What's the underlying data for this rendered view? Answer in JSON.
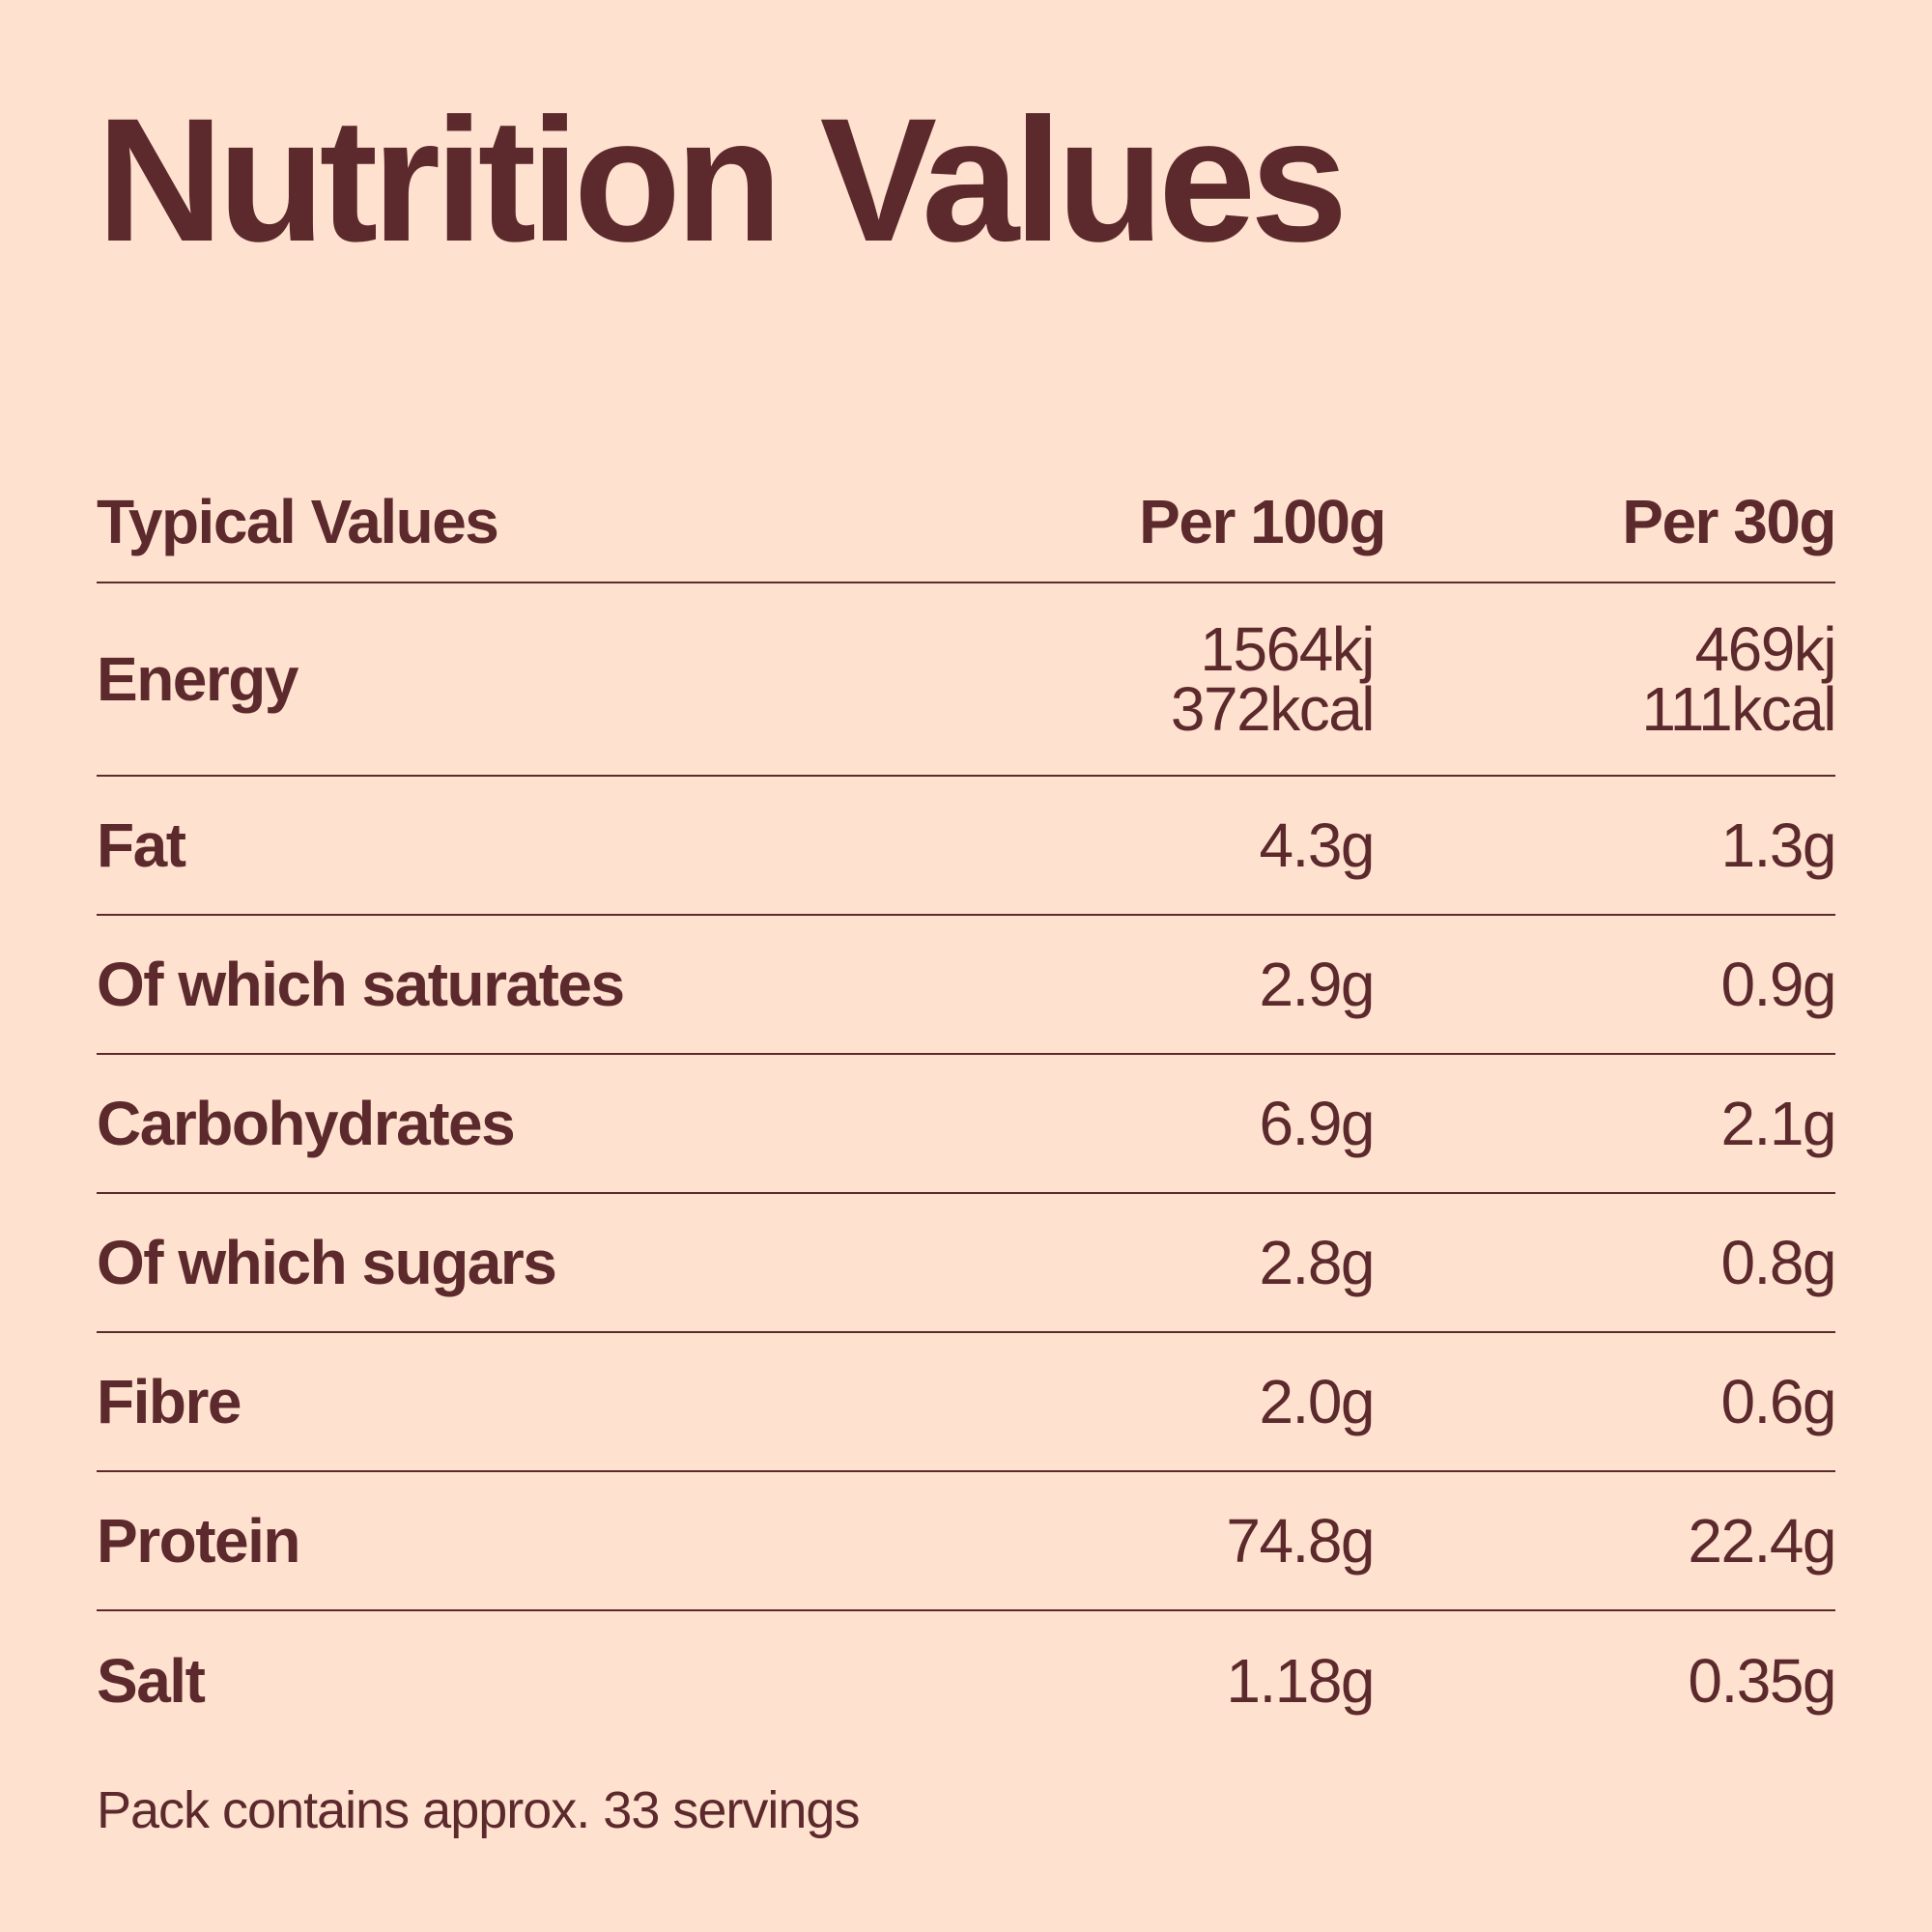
{
  "title": "Nutrition Values",
  "colors": {
    "background": "#ffe1cf",
    "text": "#5c2a2d"
  },
  "table": {
    "headers": {
      "label": "Typical Values",
      "per_100g": "Per 100g",
      "per_30g": "Per 30g"
    },
    "energy": {
      "label": "Energy",
      "per_100g_kj": "1564kj",
      "per_100g_kcal": "372kcal",
      "per_30g_kj": "469kj",
      "per_30g_kcal": "111kcal"
    },
    "rows": [
      {
        "label": "Fat",
        "per_100g": "4.3g",
        "per_30g": "1.3g"
      },
      {
        "label": "Of which saturates",
        "per_100g": "2.9g",
        "per_30g": "0.9g"
      },
      {
        "label": "Carbohydrates",
        "per_100g": "6.9g",
        "per_30g": "2.1g"
      },
      {
        "label": "Of which sugars",
        "per_100g": "2.8g",
        "per_30g": "0.8g"
      },
      {
        "label": "Fibre",
        "per_100g": "2.0g",
        "per_30g": "0.6g"
      },
      {
        "label": "Protein",
        "per_100g": "74.8g",
        "per_30g": "22.4g"
      },
      {
        "label": "Salt",
        "per_100g": "1.18g",
        "per_30g": "0.35g"
      }
    ]
  },
  "footnote": "Pack contains approx. 33 servings"
}
